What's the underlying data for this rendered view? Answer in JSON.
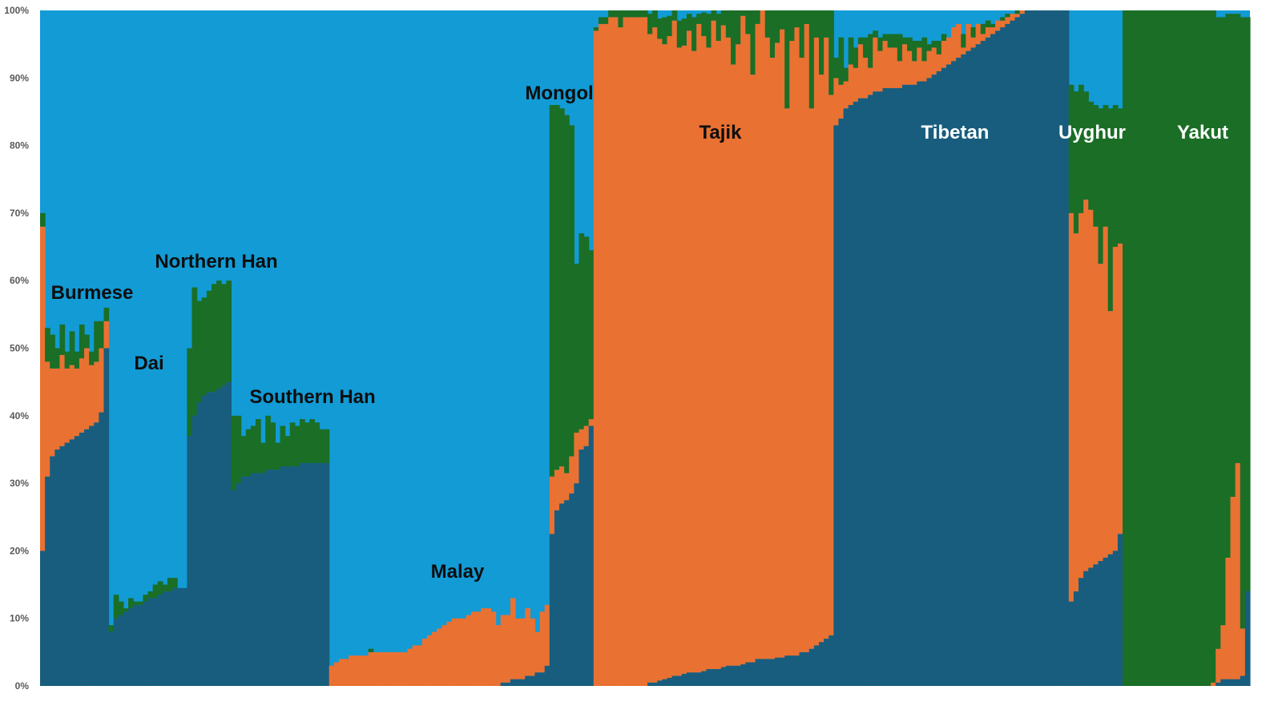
{
  "chart_data": {
    "type": "bar",
    "stacked": true,
    "normalized": true,
    "description_style": "admixture",
    "ylim": [
      0,
      100
    ],
    "yticks": [
      "0%",
      "10%",
      "20%",
      "30%",
      "40%",
      "50%",
      "60%",
      "70%",
      "80%",
      "90%",
      "100%"
    ],
    "grid": false,
    "legend": "none",
    "components": [
      {
        "key": "dark_blue",
        "color": "#185d7e"
      },
      {
        "key": "orange",
        "color": "#e97132"
      },
      {
        "key": "green",
        "color": "#1a6e26"
      },
      {
        "key": "light_blue",
        "color": "#129bd5"
      }
    ],
    "populations": [
      {
        "label": "Burmese",
        "label_color": "#0e0e0e",
        "n": 14,
        "series": {
          "dark_blue": [
            20,
            31,
            34,
            35,
            35.5,
            36,
            36.5,
            37,
            37.5,
            38,
            38.5,
            39,
            40.5,
            50
          ],
          "orange": [
            48,
            17,
            13,
            12,
            13.5,
            11,
            11,
            10,
            11,
            12,
            9,
            9,
            9.5,
            4
          ],
          "green": [
            2,
            5,
            5,
            3,
            4.5,
            2.5,
            5,
            2.5,
            5,
            2,
            2,
            6,
            4,
            2
          ]
        }
      },
      {
        "label": "Dai",
        "label_color": "#0e0e0e",
        "n": 16,
        "series": {
          "dark_blue": [
            8,
            10,
            10.5,
            11,
            11.5,
            12,
            12,
            12.5,
            13,
            13,
            13.5,
            14,
            14,
            14.5,
            14.5,
            14.5
          ],
          "orange": [
            0,
            0,
            0,
            0,
            0,
            0,
            0,
            0,
            0,
            0,
            0,
            0,
            0,
            0,
            0,
            0
          ],
          "green": [
            1,
            3.5,
            2,
            0.5,
            1.5,
            0.5,
            0.5,
            1,
            1,
            2,
            2,
            1,
            2,
            1.5,
            0,
            0
          ]
        }
      },
      {
        "label": "Northern Han",
        "label_color": "#0e0e0e",
        "n": 9,
        "series": {
          "dark_blue": [
            37,
            40,
            42,
            43,
            43.5,
            43.5,
            44,
            44.5,
            45
          ],
          "orange": [
            0,
            0,
            0,
            0,
            0,
            0,
            0,
            0,
            0
          ],
          "green": [
            13,
            19,
            15,
            14.5,
            15,
            16,
            16,
            15,
            15
          ]
        }
      },
      {
        "label": "Southern Han",
        "label_color": "#0e0e0e",
        "n": 20,
        "series": {
          "dark_blue": [
            29,
            30,
            31,
            31,
            31.5,
            31.5,
            31.5,
            32,
            32,
            32,
            32.5,
            32.5,
            32.5,
            32.5,
            33,
            33,
            33,
            33,
            33,
            33
          ],
          "orange": [
            0,
            0,
            0,
            0,
            0,
            0,
            0,
            0,
            0,
            0,
            0,
            0,
            0,
            0,
            0,
            0,
            0,
            0,
            0,
            0
          ],
          "green": [
            11,
            10,
            6,
            7,
            7,
            8,
            4.5,
            8,
            7,
            4,
            6,
            4.5,
            6.5,
            6,
            6.5,
            6,
            6.5,
            6,
            5,
            5
          ]
        }
      },
      {
        "label": "Malay",
        "label_color": "#0e0e0e",
        "n": 45,
        "series": {
          "dark_blue": [
            0,
            0,
            0,
            0,
            0,
            0,
            0,
            0,
            0,
            0,
            0,
            0,
            0,
            0,
            0,
            0,
            0,
            0,
            0,
            0,
            0,
            0,
            0,
            0,
            0,
            0,
            0,
            0,
            0,
            0,
            0,
            0,
            0,
            0,
            0,
            0.5,
            0.5,
            1,
            1,
            1,
            1.5,
            1.5,
            2,
            2,
            3
          ],
          "orange": [
            3,
            3.5,
            4,
            4,
            4.5,
            4.5,
            4.5,
            4.5,
            5,
            5,
            5,
            5,
            5,
            5,
            5,
            5,
            5.5,
            6,
            6,
            7,
            7.5,
            8,
            8.5,
            9,
            9.5,
            10,
            10,
            10,
            10.5,
            11,
            11,
            11.5,
            11.5,
            11,
            9,
            10,
            10,
            12,
            9,
            9,
            10,
            8.5,
            6,
            9,
            9
          ],
          "green": [
            0,
            0,
            0,
            0,
            0,
            0,
            0,
            0,
            0.5,
            0,
            0,
            0,
            0,
            0,
            0,
            0,
            0,
            0,
            0,
            0,
            0,
            0,
            0,
            0,
            0,
            0,
            0,
            0,
            0,
            0,
            0,
            0,
            0,
            0,
            0,
            0,
            0,
            0,
            0,
            0,
            0,
            0,
            0,
            0,
            0
          ]
        }
      },
      {
        "label": "Mongol",
        "label_color": "#0e0e0e",
        "n": 9,
        "series": {
          "dark_blue": [
            22.5,
            26,
            27,
            27.5,
            28.5,
            30,
            35,
            35.5,
            38.5
          ],
          "orange": [
            8.5,
            6,
            5.5,
            4,
            5.5,
            7.5,
            3,
            3,
            1
          ],
          "green": [
            55,
            54,
            53,
            53,
            49,
            25,
            29,
            28,
            25
          ]
        }
      },
      {
        "label": "Tajik",
        "label_color": "#0e0e0e",
        "n": 49,
        "series": {
          "dark_blue": [
            0,
            0,
            0,
            0,
            0,
            0,
            0,
            0,
            0,
            0,
            0,
            0.5,
            0.5,
            0.8,
            1,
            1.2,
            1.5,
            1.5,
            1.8,
            2,
            2,
            2,
            2.2,
            2.5,
            2.5,
            2.5,
            2.8,
            3,
            3,
            3,
            3.2,
            3.5,
            3.5,
            4,
            4,
            4,
            4,
            4.2,
            4.2,
            4.5,
            4.5,
            4.5,
            5,
            5,
            5.5,
            6,
            6.5,
            7,
            7.5
          ],
          "orange": [
            97,
            98,
            98,
            99,
            99,
            97.5,
            99,
            99,
            99,
            99,
            99,
            96,
            97,
            95,
            94,
            95,
            97,
            93,
            93,
            95,
            92,
            96,
            94,
            92,
            96,
            93,
            95,
            93,
            89,
            92,
            96,
            93,
            87,
            94,
            96,
            92,
            89,
            91,
            93,
            81,
            91,
            93,
            88,
            93,
            80,
            90,
            84,
            89,
            80
          ],
          "green": [
            0.5,
            1,
            1,
            1,
            1,
            2.5,
            1,
            1,
            1,
            1,
            1,
            3,
            2.5,
            3,
            4,
            3,
            1.5,
            4,
            4,
            2.5,
            5,
            1.5,
            3.5,
            5,
            1.5,
            4,
            2.2,
            4,
            8,
            5,
            0.8,
            3.5,
            9.5,
            2,
            0,
            4,
            7,
            4.8,
            2.8,
            14.5,
            4.5,
            2.5,
            7,
            2,
            14.5,
            4,
            9.5,
            4,
            12.5
          ]
        }
      },
      {
        "label": "Tibetan",
        "label_color": "#ffffff",
        "n": 48,
        "series": {
          "dark_blue": [
            83,
            84,
            85.5,
            86,
            86.5,
            87,
            87,
            87.5,
            88,
            88,
            88.5,
            88.5,
            88.5,
            88.5,
            89,
            89,
            89,
            89.5,
            89.5,
            90,
            90.5,
            91,
            91.5,
            92,
            92.5,
            93,
            93.5,
            94,
            94.5,
            95,
            95.5,
            96,
            96.5,
            97,
            97.5,
            98,
            98.5,
            99,
            99.5,
            100,
            100,
            100,
            100,
            100,
            100,
            100,
            100,
            100
          ],
          "orange": [
            7,
            5,
            4,
            6,
            5,
            8,
            6,
            4,
            8,
            6,
            7,
            6,
            6,
            4,
            6,
            5,
            3.5,
            5,
            3,
            4,
            4,
            2.5,
            4,
            4,
            5,
            5,
            1,
            4,
            1.5,
            3,
            1,
            1.5,
            1,
            1.5,
            1,
            1,
            1,
            0.5,
            0.5,
            0,
            0,
            0,
            0,
            0,
            0,
            0,
            0,
            0
          ],
          "green": [
            3,
            7,
            2,
            4,
            3,
            1,
            3,
            5,
            1,
            2,
            1,
            2,
            2,
            4,
            1,
            2,
            3,
            1,
            3.5,
            1,
            1,
            2,
            1,
            0,
            0,
            0,
            2,
            0,
            1.5,
            0,
            1.5,
            1,
            0.5,
            0,
            0.5,
            0.5,
            0,
            0.5,
            0,
            0,
            0,
            0,
            0,
            0,
            0,
            0,
            0,
            0
          ]
        }
      },
      {
        "label": "Uyghur",
        "label_color": "#ffffff",
        "n": 11,
        "series": {
          "dark_blue": [
            12.5,
            14,
            16,
            17,
            17.5,
            18,
            18.5,
            19,
            19.5,
            20,
            22.5
          ],
          "orange": [
            57.5,
            53,
            54,
            55,
            53,
            50,
            44,
            49,
            36,
            45,
            43
          ],
          "green": [
            19,
            21,
            19,
            16,
            16,
            18,
            23,
            18,
            30,
            21,
            20
          ]
        }
      },
      {
        "label": "Yakut",
        "label_color": "#ffffff",
        "n": 26,
        "series": {
          "dark_blue": [
            0,
            0,
            0,
            0,
            0,
            0,
            0,
            0,
            0,
            0,
            0,
            0,
            0,
            0,
            0,
            0,
            0,
            0,
            0,
            0.5,
            1,
            1,
            1,
            1,
            1.5,
            14
          ],
          "orange": [
            0,
            0,
            0,
            0,
            0,
            0,
            0,
            0,
            0,
            0,
            0,
            0,
            0,
            0,
            0,
            0,
            0,
            0,
            0.5,
            5,
            8,
            18,
            27,
            32,
            7,
            0
          ],
          "green": [
            100,
            100,
            100,
            100,
            100,
            100,
            100,
            100,
            100,
            100,
            100,
            100,
            100,
            100,
            100,
            100,
            100,
            100,
            99.5,
            93.5,
            90,
            80.5,
            71.5,
            66.5,
            90.5,
            85
          ]
        }
      }
    ]
  }
}
